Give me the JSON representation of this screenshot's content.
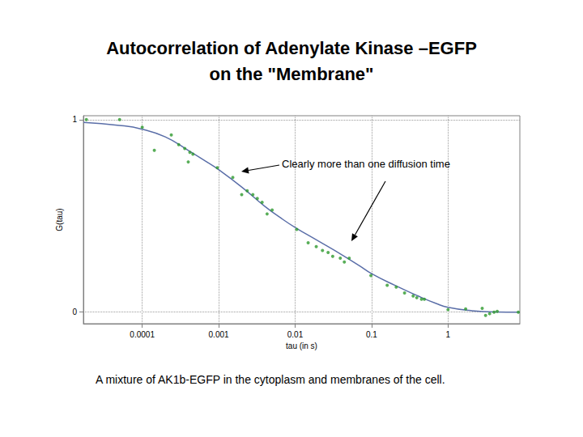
{
  "chart_data": {
    "type": "scatter",
    "title": "Autocorrelation of Adenylate Kinase –EGFP\non the \"Membrane\"",
    "x_label": "tau (in s)",
    "y_label": "G(tau)",
    "annotations": [
      "Clearly more than one diffusion time"
    ],
    "caption": "A mixture of AK1b-EGFP in the cytoplasm and membranes of the cell.",
    "log": "x",
    "grid": true,
    "xlim": [
      1.7e-05,
      8.7
    ],
    "xticks": [
      0.0001,
      0.001,
      0.01,
      0.1,
      1
    ],
    "ylim": [
      -0.06,
      1.02
    ],
    "yticks": [
      0,
      1
    ],
    "series": [
      {
        "type": "scatter",
        "color": "#2e9a2e",
        "marker": "circle",
        "x": [
          1.86e-05,
          5.06e-05,
          0.0001,
          0.000144,
          0.00024,
          0.0003,
          0.00036,
          0.00042,
          0.0004,
          0.00046,
          0.00096,
          0.00153,
          0.002,
          0.00236,
          0.0028,
          0.0032,
          0.0037,
          0.0043,
          0.005,
          0.0105,
          0.0148,
          0.0189,
          0.0228,
          0.027,
          0.031,
          0.039,
          0.044,
          0.051,
          0.098,
          0.16,
          0.21,
          0.27,
          0.35,
          0.39,
          0.45,
          0.49,
          1.0,
          1.7,
          2.8,
          3.1,
          3.5,
          4.0,
          4.4,
          8.3
        ],
        "values": [
          1.0,
          1.0,
          0.96,
          0.84,
          0.92,
          0.87,
          0.85,
          0.83,
          0.78,
          0.82,
          0.75,
          0.7,
          0.61,
          0.63,
          0.61,
          0.59,
          0.57,
          0.51,
          0.53,
          0.43,
          0.36,
          0.34,
          0.32,
          0.31,
          0.29,
          0.28,
          0.26,
          0.28,
          0.19,
          0.14,
          0.13,
          0.1,
          0.084,
          0.075,
          0.067,
          0.067,
          0.013,
          0.017,
          0.02,
          -0.017,
          -0.008,
          0,
          0.004,
          0
        ]
      },
      {
        "type": "line",
        "color": "#5a6ea8",
        "line_style": "solid",
        "x": [
          1.7e-05,
          5e-05,
          0.0001,
          0.0002,
          0.0004,
          0.0007,
          0.001,
          0.002,
          0.004,
          0.007,
          0.01,
          0.02,
          0.04,
          0.07,
          0.1,
          0.2,
          0.4,
          0.7,
          1,
          2,
          4,
          8.7
        ],
        "values": [
          0.985,
          0.97,
          0.95,
          0.91,
          0.84,
          0.78,
          0.74,
          0.65,
          0.55,
          0.48,
          0.44,
          0.37,
          0.3,
          0.24,
          0.2,
          0.14,
          0.085,
          0.045,
          0.025,
          0.008,
          0.001,
          0
        ]
      }
    ]
  }
}
